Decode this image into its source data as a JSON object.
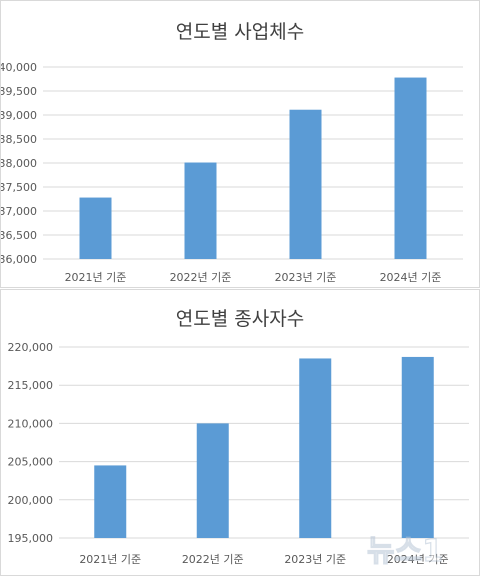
{
  "chart_data": [
    {
      "type": "bar",
      "title": "연도별 사업체수",
      "categories": [
        "2021년 기준",
        "2022년 기준",
        "2023년 기준",
        "2024년 기준"
      ],
      "values": [
        37280,
        38010,
        39110,
        39780
      ],
      "ylim": [
        36000,
        40000
      ],
      "yticks": [
        36000,
        36500,
        37000,
        37500,
        38000,
        38500,
        39000,
        39500,
        40000
      ],
      "ytick_labels": [
        "36,000",
        "36,500",
        "37,000",
        "37,500",
        "38,000",
        "38,500",
        "39,000",
        "39,500",
        "40,000"
      ],
      "xlabel": "",
      "ylabel": "",
      "grid": true,
      "bar_color": "#5b9bd5"
    },
    {
      "type": "bar",
      "title": "연도별 종사자수",
      "categories": [
        "2021년 기준",
        "2022년 기준",
        "2023년 기준",
        "2024년 기준"
      ],
      "values": [
        204500,
        210000,
        218500,
        218700
      ],
      "ylim": [
        195000,
        220000
      ],
      "yticks": [
        195000,
        200000,
        205000,
        210000,
        215000,
        220000
      ],
      "ytick_labels": [
        "195,000",
        "200,000",
        "205,000",
        "210,000",
        "215,000",
        "220,000"
      ],
      "xlabel": "",
      "ylabel": "",
      "grid": true,
      "bar_color": "#5b9bd5"
    }
  ],
  "watermark": {
    "text": "뉴스1"
  }
}
